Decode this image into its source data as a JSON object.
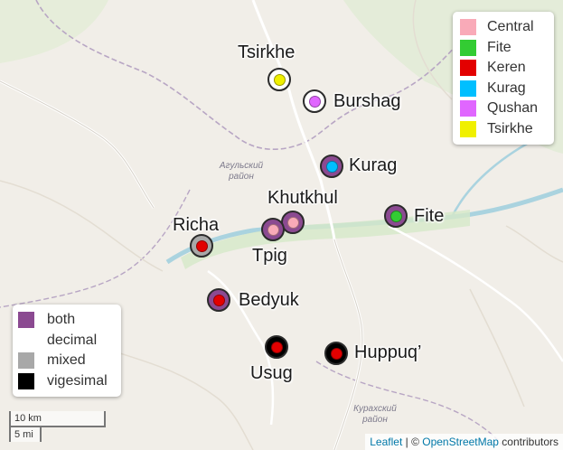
{
  "colors": {
    "both": "#8b4a91",
    "mixed": "#a8a8a8",
    "vigesimal": "#000000",
    "Central": "#f9aab8",
    "Fite": "#33cc33",
    "Keren": "#e30000",
    "Kurag": "#00bfff",
    "Qushan": "#e066ff",
    "Tsirkhe": "#f0f000"
  },
  "map_labels": [
    {
      "text_lines": [
        "Агульский",
        "район"
      ]
    },
    {
      "text_lines": [
        "Курахский",
        "район"
      ]
    }
  ],
  "villages": [
    {
      "name": "Tsirkhe",
      "type": "decimal",
      "dialect": "Tsirkhe"
    },
    {
      "name": "Burshag",
      "type": "decimal",
      "dialect": "Qushan"
    },
    {
      "name": "Kurag",
      "type": "both",
      "dialect": "Kurag"
    },
    {
      "name": "Khutkhul",
      "type": "both",
      "dialect": "Central"
    },
    {
      "name": "Tpig",
      "type": "both",
      "dialect": "Central"
    },
    {
      "name": "Fite",
      "type": "both",
      "dialect": "Fite"
    },
    {
      "name": "Richa",
      "type": "mixed",
      "dialect": "Keren"
    },
    {
      "name": "Bedyuk",
      "type": "both",
      "dialect": "Keren"
    },
    {
      "name": "Usug",
      "type": "vigesimal",
      "dialect": "Keren"
    },
    {
      "name": "Huppuq’",
      "type": "vigesimal",
      "dialect": "Keren"
    }
  ],
  "legend_dialects": [
    {
      "label": "Central",
      "color": "#f9aab8"
    },
    {
      "label": "Fite",
      "color": "#33cc33"
    },
    {
      "label": "Keren",
      "color": "#e30000"
    },
    {
      "label": "Kurag",
      "color": "#00bfff"
    },
    {
      "label": "Qushan",
      "color": "#e066ff"
    },
    {
      "label": "Tsirkhe",
      "color": "#f0f000"
    }
  ],
  "legend_types": [
    {
      "label": "both",
      "color": "#8b4a91"
    },
    {
      "label": "decimal",
      "color": "#ffffff"
    },
    {
      "label": "mixed",
      "color": "#a8a8a8"
    },
    {
      "label": "vigesimal",
      "color": "#000000"
    }
  ],
  "scale": {
    "km": "10 km",
    "mi": "5 mi"
  },
  "attribution": {
    "leaflet": "Leaflet",
    "sep": " | © ",
    "osm": "OpenStreetMap",
    "rest": " contributors"
  }
}
